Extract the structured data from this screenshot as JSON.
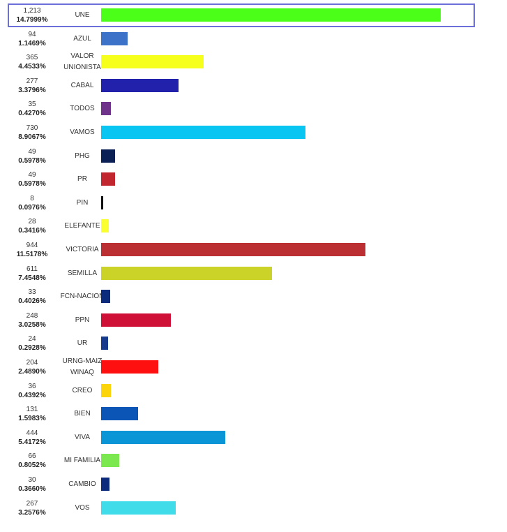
{
  "chart_data": {
    "type": "bar",
    "orientation": "horizontal",
    "highlighted": "UNE",
    "categories": [
      "UNE",
      "AZUL",
      "VALOR UNIONISTA",
      "CABAL",
      "TODOS",
      "VAMOS",
      "PHG",
      "PR",
      "PIN",
      "ELEFANTE",
      "VICTORIA",
      "SEMILLA",
      "FCN-NACION",
      "PPN",
      "UR",
      "URNG-MAIZ WINAQ",
      "CREO",
      "BIEN",
      "VIVA",
      "MI FAMILIA",
      "CAMBIO",
      "VOS"
    ],
    "values": [
      1213,
      94,
      365,
      277,
      35,
      730,
      49,
      49,
      8,
      28,
      944,
      611,
      33,
      248,
      24,
      204,
      36,
      131,
      444,
      66,
      30,
      267
    ],
    "value_labels": [
      "1,213",
      "94",
      "365",
      "277",
      "35",
      "730",
      "49",
      "49",
      "8",
      "28",
      "944",
      "611",
      "33",
      "248",
      "24",
      "204",
      "36",
      "131",
      "444",
      "66",
      "30",
      "267"
    ],
    "percent_labels": [
      "14.7999%",
      "1.1469%",
      "4.4533%",
      "3.3796%",
      "0.4270%",
      "8.9067%",
      "0.5978%",
      "0.5978%",
      "0.0976%",
      "0.3416%",
      "11.5178%",
      "7.4548%",
      "0.4026%",
      "3.0258%",
      "0.2928%",
      "2.4890%",
      "0.4392%",
      "1.5983%",
      "5.4172%",
      "0.8052%",
      "0.3660%",
      "3.2576%"
    ],
    "colors": [
      "#4cff18",
      "#3c73c9",
      "#f6ff1b",
      "#2221ab",
      "#70338c",
      "#08c6f1",
      "#0b2054",
      "#c1252d",
      "#111111",
      "#f9ff30",
      "#bb2f33",
      "#cbd228",
      "#0d2b7c",
      "#cf1138",
      "#173b8c",
      "#ff1010",
      "#fbd50a",
      "#0a55b5",
      "#0a96d6",
      "#7be84f",
      "#0d2b7c",
      "#40dcea"
    ]
  }
}
